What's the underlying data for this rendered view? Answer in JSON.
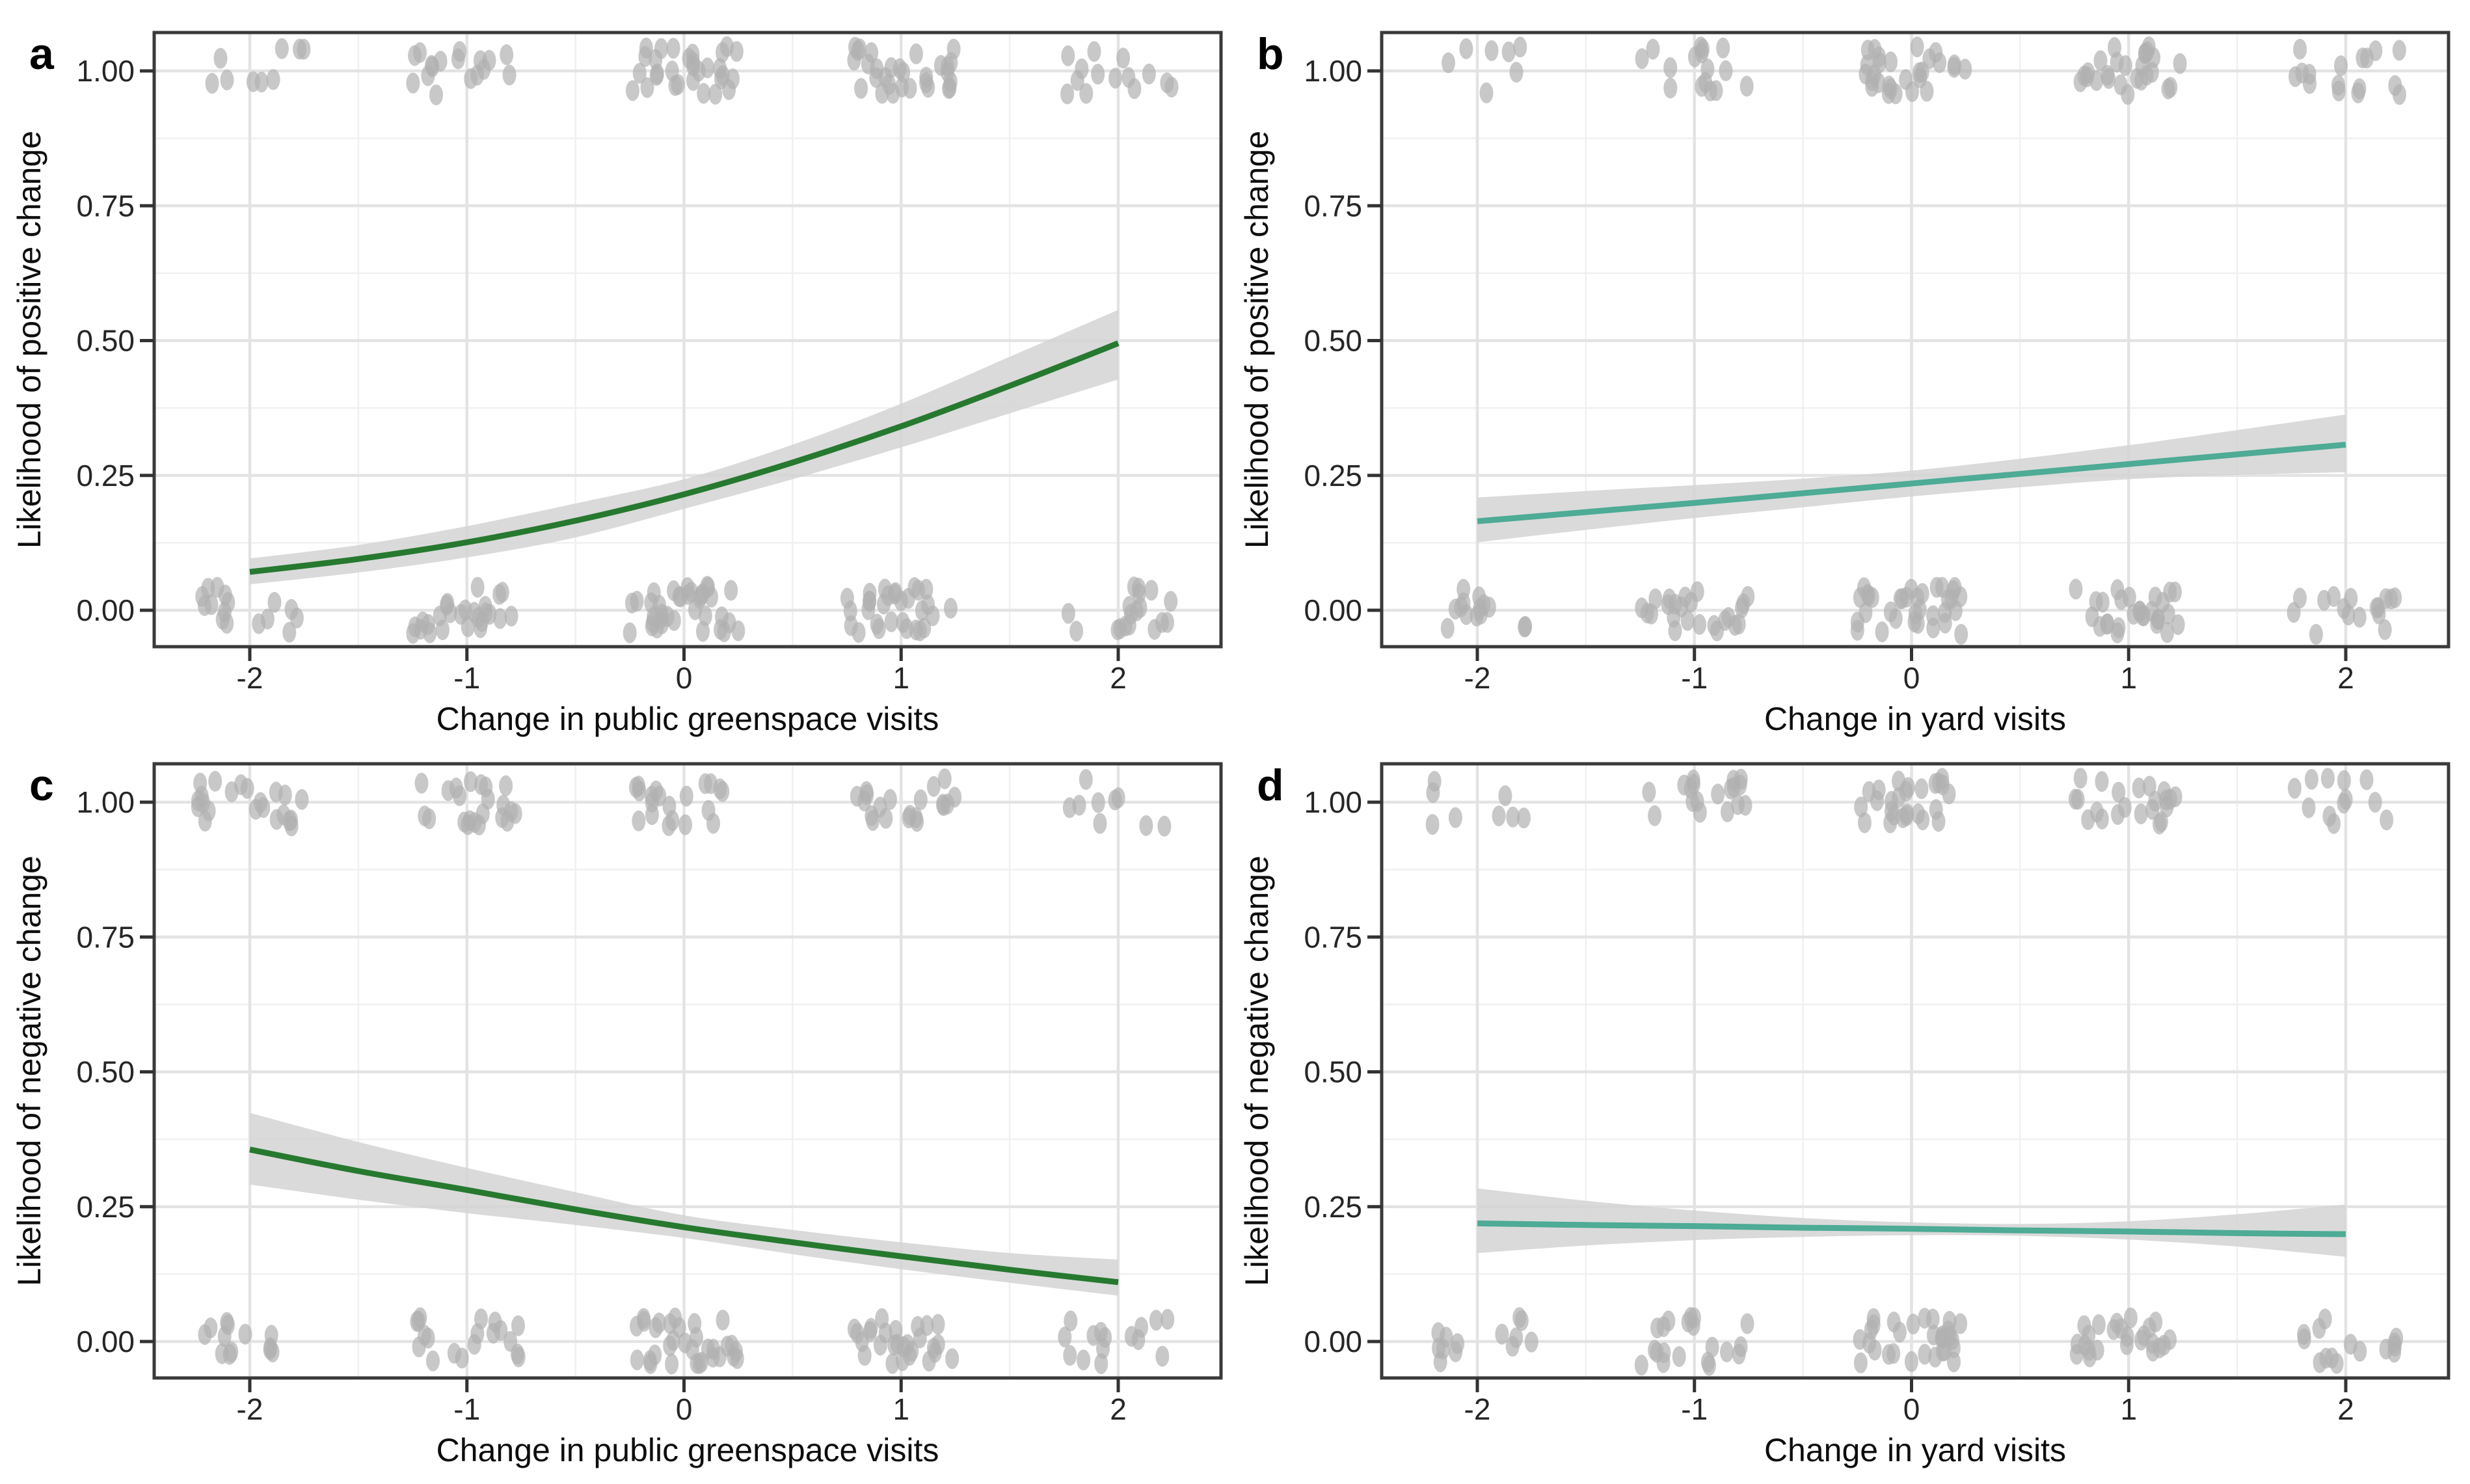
{
  "figure": {
    "background": "#ffffff",
    "panel_border_color": "#3a3a3a",
    "grid_major_color": "#e3e3e3",
    "grid_minor_color": "#f0f0f0",
    "tick_color": "#333333",
    "tick_label_color": "#262626",
    "axis_title_color": "#0d0d0d",
    "panel_letter_color": "#000000",
    "point_color": "#b0b0b0",
    "ribbon_color": "#d4d4d4"
  },
  "chart_data": [
    {
      "type": "line",
      "panel_label": "a",
      "xlabel": "Change in public greenspace visits",
      "ylabel": "Likelihood of positive change",
      "x_tick_labels": [
        "-2",
        "-1",
        "0",
        "1",
        "2"
      ],
      "x_tick_values": [
        -2,
        -1,
        0,
        1,
        2
      ],
      "y_tick_labels": [
        "0.00",
        "0.25",
        "0.50",
        "0.75",
        "1.00"
      ],
      "y_tick_values": [
        0,
        0.25,
        0.5,
        0.75,
        1.0
      ],
      "x_minor": [
        -1.5,
        -0.5,
        0.5,
        1.5
      ],
      "y_minor": [
        0.125,
        0.375,
        0.625,
        0.875
      ],
      "xlim": [
        -2.44,
        2.47
      ],
      "ylim": [
        -0.068,
        1.071
      ],
      "line_color": "#26792f",
      "grid_on": true,
      "legend": "none",
      "fit": {
        "x": [
          -2,
          -1.5,
          -1,
          -0.5,
          0,
          0.5,
          1,
          1.5,
          2
        ],
        "y": [
          0.071,
          0.095,
          0.126,
          0.166,
          0.215,
          0.274,
          0.341,
          0.416,
          0.495
        ],
        "lo": [
          0.048,
          0.07,
          0.098,
          0.135,
          0.188,
          0.243,
          0.302,
          0.365,
          0.428
        ],
        "hi": [
          0.096,
          0.121,
          0.156,
          0.198,
          0.243,
          0.307,
          0.383,
          0.47,
          0.557
        ]
      },
      "jitter_centers": [
        -2,
        -1,
        0,
        1,
        2
      ],
      "jitter_counts_y1": [
        9,
        17,
        30,
        30,
        14
      ],
      "jitter_counts_y0": [
        16,
        26,
        36,
        30,
        18
      ]
    },
    {
      "type": "line",
      "panel_label": "b",
      "xlabel": "Change in yard visits",
      "ylabel": "Likelihood of positive change",
      "x_tick_labels": [
        "-2",
        "-1",
        "0",
        "1",
        "2"
      ],
      "x_tick_values": [
        -2,
        -1,
        0,
        1,
        2
      ],
      "y_tick_labels": [
        "0.00",
        "0.25",
        "0.50",
        "0.75",
        "1.00"
      ],
      "y_tick_values": [
        0,
        0.25,
        0.5,
        0.75,
        1.0
      ],
      "x_minor": [
        -1.5,
        -0.5,
        0.5,
        1.5
      ],
      "y_minor": [
        0.125,
        0.375,
        0.625,
        0.875
      ],
      "xlim": [
        -2.44,
        2.47
      ],
      "ylim": [
        -0.068,
        1.071
      ],
      "line_color": "#4dab96",
      "grid_on": true,
      "legend": "none",
      "fit": {
        "x": [
          -2,
          -1.5,
          -1,
          -0.5,
          0,
          0.5,
          1,
          1.5,
          2
        ],
        "y": [
          0.165,
          0.182,
          0.199,
          0.217,
          0.235,
          0.253,
          0.271,
          0.289,
          0.307
        ],
        "lo": [
          0.126,
          0.149,
          0.171,
          0.191,
          0.211,
          0.228,
          0.243,
          0.251,
          0.256
        ],
        "hi": [
          0.209,
          0.221,
          0.232,
          0.244,
          0.259,
          0.281,
          0.306,
          0.334,
          0.363
        ]
      },
      "jitter_centers": [
        -2,
        -1,
        0,
        1,
        2
      ],
      "jitter_counts_y1": [
        7,
        16,
        28,
        26,
        16
      ],
      "jitter_counts_y0": [
        14,
        24,
        34,
        28,
        16
      ]
    },
    {
      "type": "line",
      "panel_label": "c",
      "xlabel": "Change in public greenspace visits",
      "ylabel": "Likelihood of negative change",
      "x_tick_labels": [
        "-2",
        "-1",
        "0",
        "1",
        "2"
      ],
      "x_tick_values": [
        -2,
        -1,
        0,
        1,
        2
      ],
      "y_tick_labels": [
        "0.00",
        "0.25",
        "0.50",
        "0.75",
        "1.00"
      ],
      "y_tick_values": [
        0,
        0.25,
        0.5,
        0.75,
        1.0
      ],
      "x_minor": [
        -1.5,
        -0.5,
        0.5,
        1.5
      ],
      "y_minor": [
        0.125,
        0.375,
        0.625,
        0.875
      ],
      "xlim": [
        -2.44,
        2.47
      ],
      "ylim": [
        -0.068,
        1.071
      ],
      "line_color": "#26792f",
      "grid_on": true,
      "legend": "none",
      "fit": {
        "x": [
          -2,
          -1.5,
          -1,
          -0.5,
          0,
          0.5,
          1,
          1.5,
          2
        ],
        "y": [
          0.356,
          0.316,
          0.281,
          0.245,
          0.212,
          0.184,
          0.158,
          0.133,
          0.11
        ],
        "lo": [
          0.291,
          0.263,
          0.238,
          0.216,
          0.192,
          0.162,
          0.134,
          0.109,
          0.085
        ],
        "hi": [
          0.424,
          0.37,
          0.322,
          0.277,
          0.234,
          0.207,
          0.184,
          0.164,
          0.152
        ]
      },
      "jitter_centers": [
        -2,
        -1,
        0,
        1,
        2
      ],
      "jitter_counts_y1": [
        22,
        22,
        20,
        20,
        9
      ],
      "jitter_counts_y0": [
        13,
        19,
        32,
        27,
        15
      ]
    },
    {
      "type": "line",
      "panel_label": "d",
      "xlabel": "Change in yard visits",
      "ylabel": "Likelihood of negative change",
      "x_tick_labels": [
        "-2",
        "-1",
        "0",
        "1",
        "2"
      ],
      "x_tick_values": [
        -2,
        -1,
        0,
        1,
        2
      ],
      "y_tick_labels": [
        "0.00",
        "0.25",
        "0.50",
        "0.75",
        "1.00"
      ],
      "y_tick_values": [
        0,
        0.25,
        0.5,
        0.75,
        1.0
      ],
      "x_minor": [
        -1.5,
        -0.5,
        0.5,
        1.5
      ],
      "y_minor": [
        0.125,
        0.375,
        0.625,
        0.875
      ],
      "xlim": [
        -2.44,
        2.47
      ],
      "ylim": [
        -0.068,
        1.071
      ],
      "line_color": "#4dab96",
      "grid_on": true,
      "legend": "none",
      "fit": {
        "x": [
          -2,
          -1.5,
          -1,
          -0.5,
          0,
          0.5,
          1,
          1.5,
          2
        ],
        "y": [
          0.219,
          0.216,
          0.214,
          0.211,
          0.209,
          0.206,
          0.204,
          0.201,
          0.199
        ],
        "lo": [
          0.164,
          0.178,
          0.188,
          0.194,
          0.197,
          0.196,
          0.189,
          0.176,
          0.157
        ],
        "hi": [
          0.284,
          0.261,
          0.243,
          0.229,
          0.221,
          0.218,
          0.223,
          0.236,
          0.254
        ]
      },
      "jitter_centers": [
        -2,
        -1,
        0,
        1,
        2
      ],
      "jitter_counts_y1": [
        8,
        18,
        26,
        22,
        12
      ],
      "jitter_counts_y0": [
        13,
        20,
        30,
        24,
        15
      ]
    }
  ]
}
